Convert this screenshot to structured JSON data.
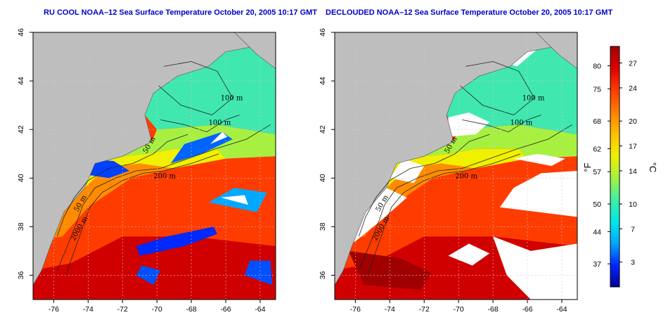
{
  "panels": [
    {
      "title": "RU COOL NOAA–12 Sea Surface Temperature October 20, 2005 10:17 GMT",
      "variant": "raw"
    },
    {
      "title": "DECLOUDED NOAA–12 Sea Surface Temperature October 20, 2005 10:17 GMT",
      "variant": "declouded"
    }
  ],
  "axes": {
    "lon_ticks": [
      "-76",
      "-74",
      "-72",
      "-70",
      "-68",
      "-66",
      "-64"
    ],
    "lat_ticks": [
      "36",
      "38",
      "40",
      "42",
      "44",
      "46"
    ],
    "lon_range": [
      -77.2,
      -63.1
    ],
    "lat_range": [
      35.0,
      46.0
    ]
  },
  "contour_labels": [
    "100 m",
    "100 m",
    "50 m",
    "200 m",
    "50 m",
    "2000 m"
  ],
  "colorbar": {
    "fahrenheit_ticks": [
      "80",
      "75",
      "68",
      "62",
      "57",
      "50",
      "44",
      "37"
    ],
    "celsius_ticks": [
      "27",
      "24",
      "20",
      "17",
      "14",
      "10",
      "7",
      "3"
    ],
    "fahrenheit_label": "°F",
    "celsius_label": "°C",
    "colors": [
      "#00009a",
      "#0028ff",
      "#00a8ff",
      "#00e8e8",
      "#40f0a0",
      "#a8f040",
      "#f0f000",
      "#ffc000",
      "#ff8000",
      "#ff3c00",
      "#e00000",
      "#a00000"
    ]
  },
  "colors": {
    "land": "#bebebe",
    "cloud": "#ffffff",
    "title": "#0000c8"
  }
}
